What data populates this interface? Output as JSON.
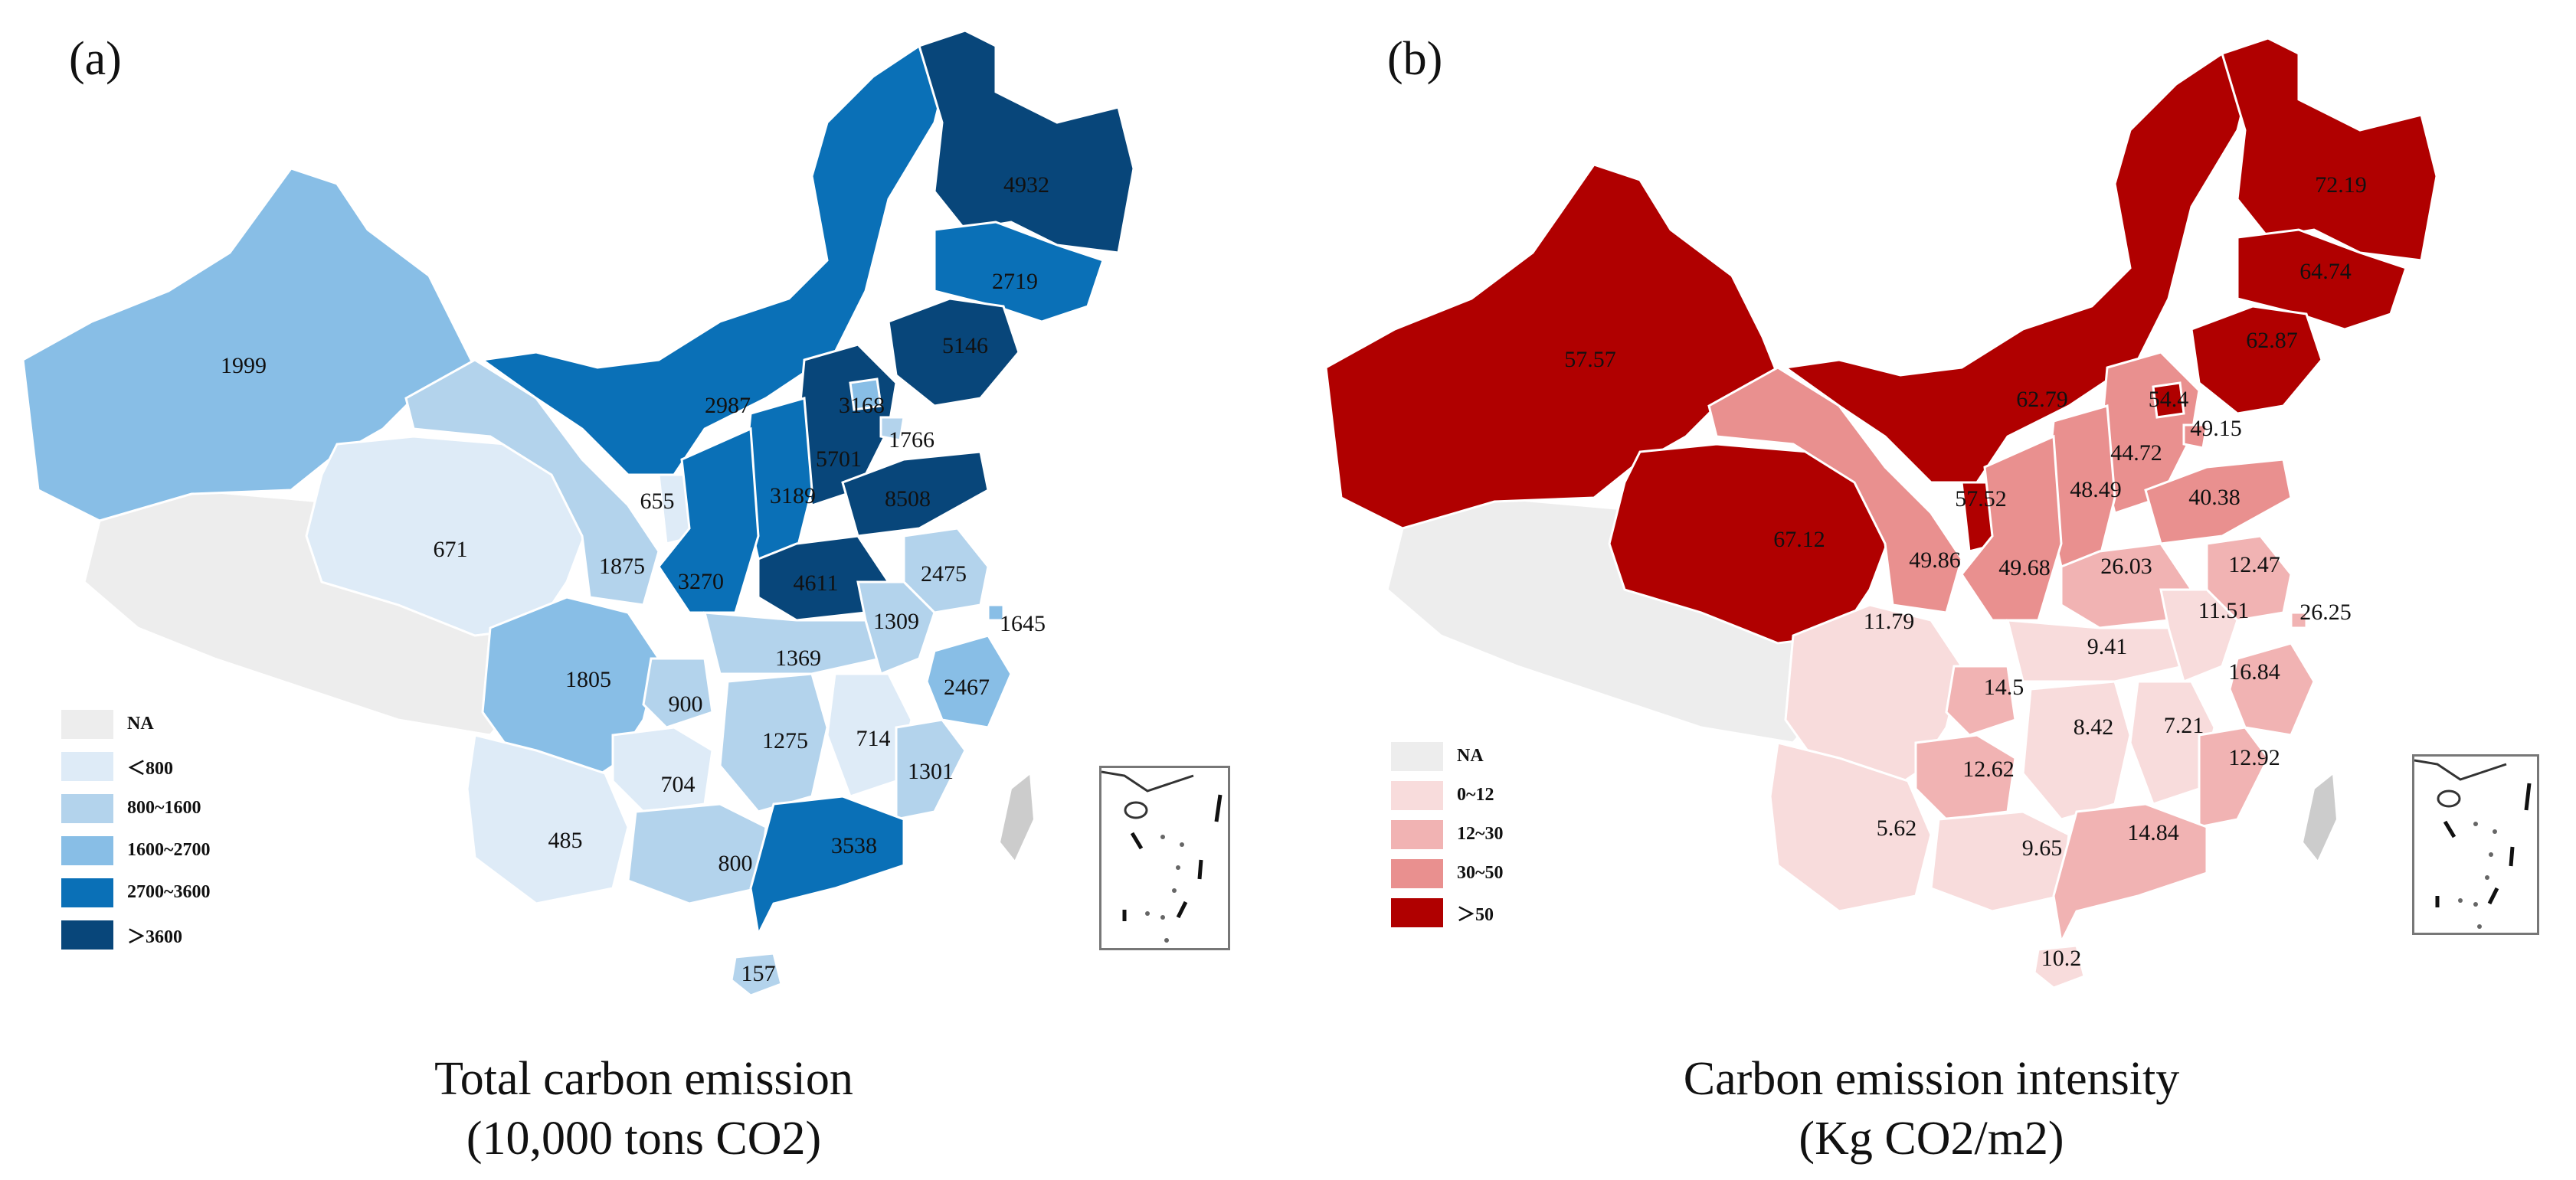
{
  "panels": [
    {
      "tag": "(a)",
      "caption_line1": "Total carbon emission",
      "caption_line2": "(10,000 tons CO2)",
      "legend": [
        {
          "label": "NA",
          "color": "#ededed"
        },
        {
          "label": "＜800",
          "color": "#deebf7"
        },
        {
          "label": "800~1600",
          "color": "#b3d3ec"
        },
        {
          "label": "1600~2700",
          "color": "#88bee6"
        },
        {
          "label": "2700~3600",
          "color": "#0a70b7"
        },
        {
          "label": "＞3600",
          "color": "#08467a"
        }
      ],
      "values": [
        "4932",
        "2719",
        "5146",
        "1999",
        "2987",
        "3168",
        "1766",
        "5701",
        "655",
        "671",
        "3189",
        "8508",
        "1875",
        "3270",
        "4611",
        "2475",
        "1645",
        "1309",
        "1805",
        "1369",
        "900",
        "2467",
        "1275",
        "714",
        "704",
        "1301",
        "485",
        "800",
        "3538",
        "157"
      ]
    },
    {
      "tag": "(b)",
      "caption_line1": "Carbon emission intensity",
      "caption_line2": "(Kg CO2/m2)",
      "legend": [
        {
          "label": "NA",
          "color": "#ededed"
        },
        {
          "label": "0~12",
          "color": "#f8dcdc"
        },
        {
          "label": "12~30",
          "color": "#f1b3b3"
        },
        {
          "label": "30~50",
          "color": "#e9908f"
        },
        {
          "label": "＞50",
          "color": "#b00000"
        }
      ],
      "values": [
        "72.19",
        "64.74",
        "62.87",
        "57.57",
        "62.79",
        "54.4",
        "49.15",
        "44.72",
        "57.52",
        "48.49",
        "40.38",
        "67.12",
        "49.86",
        "49.68",
        "26.03",
        "12.47",
        "26.25",
        "11.51",
        "11.79",
        "9.41",
        "16.84",
        "14.5",
        "8.42",
        "7.21",
        "12.62",
        "12.92",
        "5.62",
        "9.65",
        "14.84",
        "10.2"
      ]
    }
  ]
}
